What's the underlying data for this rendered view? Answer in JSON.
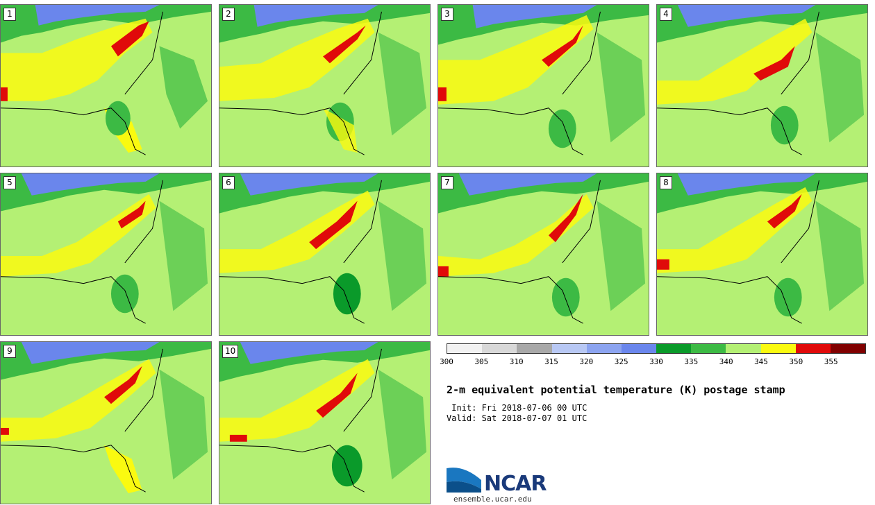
{
  "panels": [
    "1",
    "2",
    "3",
    "4",
    "5",
    "6",
    "7",
    "8",
    "9",
    "10"
  ],
  "colorbar": {
    "colors": [
      "#f2f2f2",
      "#d8d8d8",
      "#a8a8a8",
      "#b8c8f4",
      "#8ca4f0",
      "#6a86ec",
      "#0a9a2a",
      "#3cba44",
      "#b4f074",
      "#fafa10",
      "#e00a0a",
      "#800000"
    ],
    "ticks": [
      "300",
      "305",
      "310",
      "315",
      "320",
      "325",
      "330",
      "335",
      "340",
      "345",
      "350",
      "355"
    ]
  },
  "title": "2-m equivalent potential temperature (K) postage stamp",
  "init": " Init: Fri 2018-07-06 00 UTC",
  "valid": "Valid: Sat 2018-07-07 01 UTC",
  "logo": {
    "text": "NCAR",
    "url": "ensemble.ucar.edu"
  }
}
